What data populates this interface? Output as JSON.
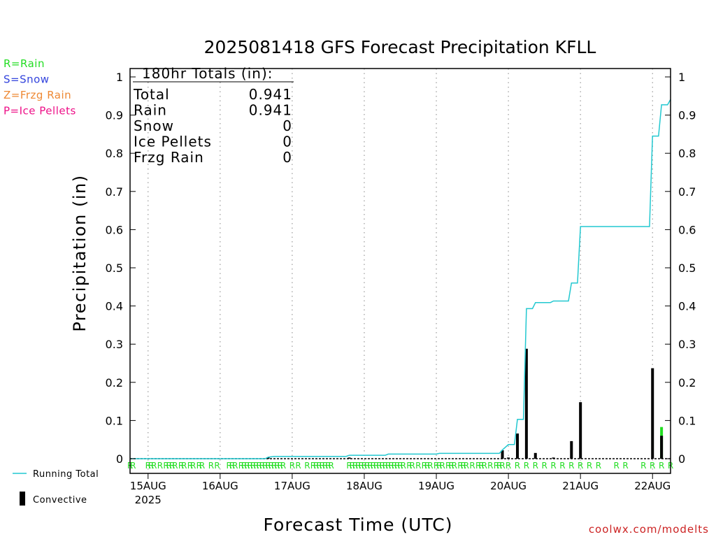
{
  "chart_data": {
    "type": "bar",
    "title": "2025081418 GFS Forecast Precipitation KFLL",
    "xlabel": "Forecast Time (UTC)",
    "ylabel": "Precipitation (in)",
    "ylim": [
      0,
      1.05
    ],
    "y_ticks": [
      "0",
      "0.1",
      "0.2",
      "0.3",
      "0.4",
      "0.5",
      "0.6",
      "0.7",
      "0.8",
      "0.9",
      "1"
    ],
    "x_ticks": [
      {
        "hour": 6,
        "label": "15AUG",
        "sub": "2025"
      },
      {
        "hour": 30,
        "label": "16AUG",
        "sub": ""
      },
      {
        "hour": 54,
        "label": "17AUG",
        "sub": ""
      },
      {
        "hour": 78,
        "label": "18AUG",
        "sub": ""
      },
      {
        "hour": 102,
        "label": "19AUG",
        "sub": ""
      },
      {
        "hour": 126,
        "label": "20AUG",
        "sub": ""
      },
      {
        "hour": 150,
        "label": "21AUG",
        "sub": ""
      },
      {
        "hour": 174,
        "label": "22AUG",
        "sub": ""
      }
    ],
    "x_range_hours": [
      0,
      180
    ],
    "grid": "vertical dotted at day boundaries",
    "precip_type_legend": [
      {
        "text": "R=Rain",
        "color": "#22dd22"
      },
      {
        "text": "S=Snow",
        "color": "#3344dd"
      },
      {
        "text": "Z=Frzg Rain",
        "color": "#ee8833"
      },
      {
        "text": "P=Ice Pellets",
        "color": "#ee1188"
      }
    ],
    "totals": {
      "header": "180hr Totals (in):",
      "rows": [
        {
          "label": "Total",
          "value": "0.941"
        },
        {
          "label": "Rain",
          "value": "0.941"
        },
        {
          "label": "Snow",
          "value": "0"
        },
        {
          "label": "Ice Pellets",
          "value": "0"
        },
        {
          "label": "Frzg Rain",
          "value": "0"
        }
      ]
    },
    "series": [
      {
        "name": "Running Total",
        "color": "#22c8d0",
        "points": [
          [
            0,
            0
          ],
          [
            45,
            0
          ],
          [
            46,
            0.004
          ],
          [
            48,
            0.006
          ],
          [
            72,
            0.006
          ],
          [
            73,
            0.009
          ],
          [
            85,
            0.009
          ],
          [
            86,
            0.012
          ],
          [
            102,
            0.012
          ],
          [
            103,
            0.014
          ],
          [
            123,
            0.014
          ],
          [
            124,
            0.023
          ],
          [
            126,
            0.037
          ],
          [
            128,
            0.037
          ],
          [
            129,
            0.103
          ],
          [
            131,
            0.103
          ],
          [
            132,
            0.393
          ],
          [
            134,
            0.393
          ],
          [
            135,
            0.409
          ],
          [
            140,
            0.409
          ],
          [
            141,
            0.413
          ],
          [
            146,
            0.413
          ],
          [
            147,
            0.46
          ],
          [
            149,
            0.46
          ],
          [
            150,
            0.608
          ],
          [
            173,
            0.608
          ],
          [
            174,
            0.845
          ],
          [
            176,
            0.845
          ],
          [
            177,
            0.927
          ],
          [
            179,
            0.927
          ],
          [
            180,
            0.941
          ]
        ]
      },
      {
        "name": "Convective",
        "color": "#000000",
        "bars": [
          {
            "hour": 46,
            "value": 0.003
          },
          {
            "hour": 73,
            "value": 0.003
          },
          {
            "hour": 124,
            "value": 0.022
          },
          {
            "hour": 126,
            "value": 0.003
          },
          {
            "hour": 129,
            "value": 0.066
          },
          {
            "hour": 132,
            "value": 0.288
          },
          {
            "hour": 135,
            "value": 0.015
          },
          {
            "hour": 141,
            "value": 0.003
          },
          {
            "hour": 147,
            "value": 0.046
          },
          {
            "hour": 150,
            "value": 0.148
          },
          {
            "hour": 174,
            "value": 0.237
          },
          {
            "hour": 177,
            "value": 0.06
          }
        ]
      },
      {
        "name": "Rain",
        "color": "#22dd22",
        "bars": [
          {
            "hour": 177,
            "value": 0.083
          }
        ]
      }
    ],
    "ptype_marks": {
      "letter": "R",
      "hours": [
        0,
        1,
        6,
        7,
        8,
        10,
        12,
        13,
        14,
        15,
        17,
        18,
        20,
        21,
        23,
        24,
        27,
        29,
        33,
        34,
        35,
        37,
        38,
        39,
        40,
        41,
        42,
        43,
        44,
        45,
        46,
        47,
        48,
        49,
        50,
        51,
        54,
        56,
        59,
        61,
        62,
        63,
        64,
        65,
        66,
        67,
        73,
        74,
        75,
        76,
        77,
        78,
        79,
        80,
        81,
        82,
        83,
        84,
        85,
        86,
        87,
        88,
        89,
        90,
        91,
        93,
        94,
        96,
        98,
        99,
        100,
        102,
        103,
        104,
        106,
        107,
        108,
        110,
        111,
        112,
        114,
        116,
        117,
        118,
        120,
        122,
        123,
        124,
        126,
        129,
        132,
        135,
        138,
        141,
        144,
        147,
        150,
        153,
        156,
        162,
        165,
        171,
        174,
        177,
        180
      ]
    }
  },
  "legend": {
    "running_total_label": "Running Total",
    "convective_label": "Convective"
  },
  "watermark": "coolwx.com/modelts"
}
